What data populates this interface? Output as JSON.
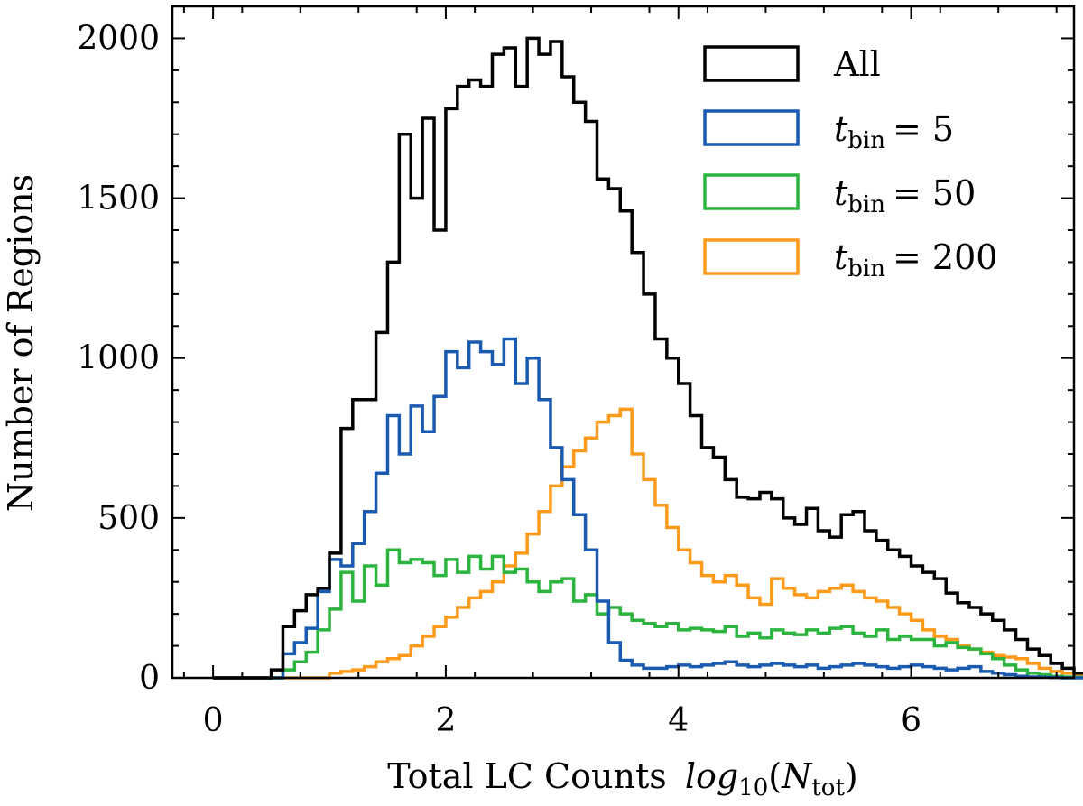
{
  "chart_data": {
    "type": "histogram",
    "xlabel": "Total LC Counts",
    "xlabel_math": "log",
    "xlabel_math_sub": "10",
    "xlabel_math_arg": "N",
    "xlabel_math_arg_sub": "tot",
    "ylabel": "Number of Regions",
    "xlim": [
      -0.35,
      7.4
    ],
    "ylim": [
      0,
      2100
    ],
    "xticks": [
      0,
      2,
      4,
      6
    ],
    "xtick_labels": [
      "0",
      "2",
      "4",
      "6"
    ],
    "yticks": [
      0,
      500,
      1000,
      1500,
      2000
    ],
    "ytick_labels": [
      "0",
      "500",
      "1000",
      "1500",
      "2000"
    ],
    "bin_start": 0.0,
    "bin_width": 0.1,
    "legend_position": "top-right",
    "series": [
      {
        "name": "All",
        "color": "#000000",
        "values": [
          0,
          0,
          0,
          0,
          0,
          25,
          160,
          210,
          260,
          280,
          390,
          780,
          870,
          870,
          1080,
          1300,
          1700,
          1500,
          1750,
          1400,
          1780,
          1850,
          1870,
          1850,
          1950,
          1970,
          1850,
          2000,
          1950,
          1990,
          1880,
          1800,
          1740,
          1560,
          1530,
          1460,
          1330,
          1200,
          1060,
          1000,
          920,
          820,
          720,
          690,
          620,
          565,
          560,
          580,
          560,
          500,
          480,
          530,
          460,
          440,
          510,
          520,
          460,
          430,
          400,
          380,
          350,
          330,
          310,
          265,
          235,
          220,
          200,
          180,
          150,
          120,
          90,
          70,
          45,
          30,
          15,
          8,
          5,
          3,
          2,
          1,
          0,
          0,
          0,
          0,
          0,
          0,
          0,
          0,
          0,
          0,
          0
        ]
      },
      {
        "name": "t_bin = 5",
        "label_base": "t",
        "label_sub": "bin",
        "label_value": "= 5",
        "color": "#1a5ab0",
        "values": [
          0,
          0,
          0,
          0,
          0,
          0,
          75,
          110,
          155,
          270,
          370,
          350,
          420,
          520,
          640,
          820,
          700,
          850,
          770,
          880,
          1020,
          970,
          1050,
          1020,
          980,
          1060,
          920,
          1000,
          870,
          720,
          620,
          510,
          400,
          240,
          110,
          55,
          40,
          30,
          30,
          35,
          40,
          35,
          40,
          45,
          50,
          40,
          35,
          40,
          45,
          40,
          35,
          40,
          30,
          35,
          40,
          45,
          40,
          35,
          30,
          35,
          40,
          35,
          30,
          25,
          30,
          35,
          20,
          15,
          10,
          5,
          3,
          2,
          1,
          0,
          0,
          0,
          0,
          0,
          0,
          0,
          0,
          0,
          0,
          0,
          0,
          0,
          0,
          0,
          0
        ]
      },
      {
        "name": "t_bin = 50",
        "label_base": "t",
        "label_sub": "bin",
        "label_value": "= 50",
        "color": "#2bb53f",
        "values": [
          0,
          0,
          0,
          0,
          0,
          0,
          25,
          50,
          80,
          150,
          215,
          330,
          240,
          350,
          290,
          400,
          360,
          370,
          360,
          320,
          370,
          330,
          380,
          340,
          380,
          330,
          340,
          300,
          270,
          300,
          310,
          240,
          260,
          200,
          220,
          200,
          180,
          170,
          160,
          170,
          150,
          155,
          150,
          145,
          160,
          130,
          140,
          125,
          150,
          140,
          135,
          150,
          140,
          155,
          160,
          140,
          130,
          150,
          120,
          130,
          120,
          120,
          100,
          110,
          95,
          90,
          75,
          60,
          40,
          25,
          15,
          10,
          5,
          3,
          2,
          1,
          0,
          0,
          0,
          0,
          0,
          0,
          0,
          0,
          0,
          0,
          0,
          0,
          0,
          0,
          0
        ]
      },
      {
        "name": "t_bin = 200",
        "label_base": "t",
        "label_sub": "bin",
        "label_value": "= 200",
        "color": "#ff9a1a",
        "values": [
          0,
          0,
          0,
          0,
          0,
          0,
          0,
          0,
          0,
          0,
          15,
          20,
          25,
          35,
          50,
          60,
          70,
          100,
          130,
          160,
          190,
          220,
          250,
          270,
          300,
          350,
          390,
          450,
          520,
          600,
          660,
          710,
          750,
          800,
          820,
          840,
          700,
          620,
          540,
          470,
          400,
          360,
          320,
          300,
          320,
          290,
          250,
          230,
          310,
          280,
          260,
          250,
          270,
          280,
          290,
          270,
          250,
          240,
          220,
          200,
          180,
          150,
          130,
          120,
          100,
          90,
          80,
          70,
          65,
          60,
          45,
          30,
          20,
          15,
          12,
          10,
          12,
          10,
          8,
          5,
          3,
          2,
          1,
          0,
          0,
          0,
          0,
          0,
          0,
          0,
          0
        ]
      }
    ]
  }
}
